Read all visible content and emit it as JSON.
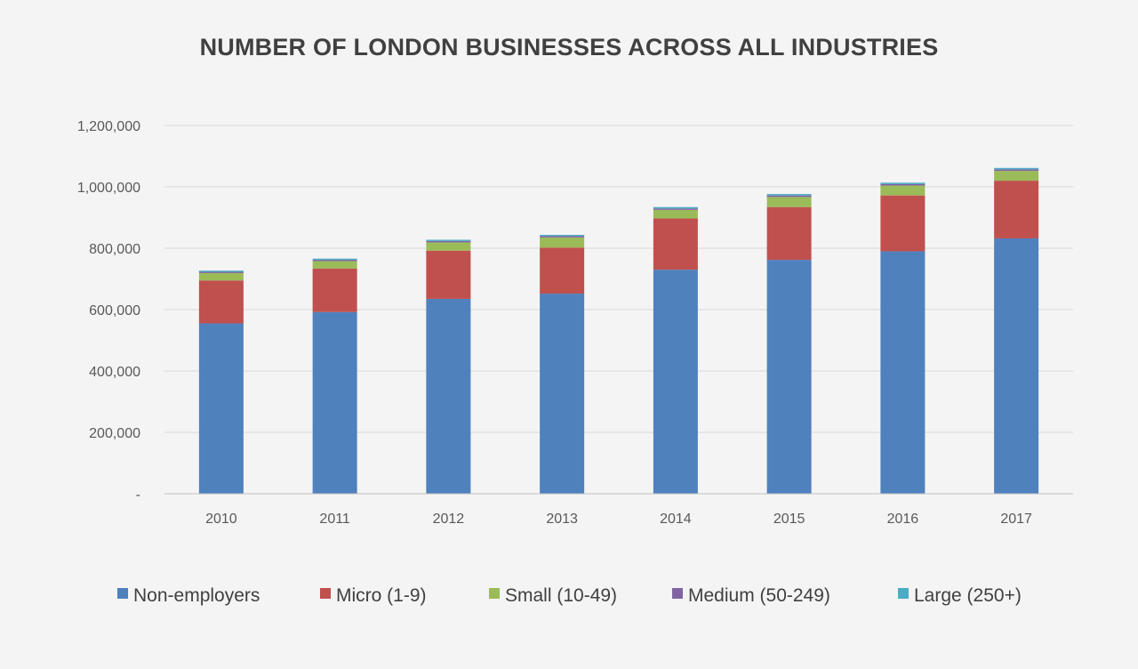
{
  "chart_data": {
    "type": "bar",
    "stacked": true,
    "title": "NUMBER OF LONDON BUSINESSES ACROSS ALL INDUSTRIES",
    "xlabel": "",
    "ylabel": "",
    "categories": [
      "2010",
      "2011",
      "2012",
      "2013",
      "2014",
      "2015",
      "2016",
      "2017"
    ],
    "ylim": [
      0,
      1200000
    ],
    "y_ticks": [
      0,
      200000,
      400000,
      600000,
      800000,
      1000000,
      1200000
    ],
    "y_tick_labels": [
      "-",
      "200,000",
      "400,000",
      "600,000",
      "800,000",
      "1,000,000",
      "1,200,000"
    ],
    "grid": true,
    "legend_position": "bottom",
    "series": [
      {
        "name": "Non-employers",
        "color": "#4f81bd",
        "values": [
          555000,
          592000,
          635000,
          652000,
          730000,
          762000,
          790000,
          832000
        ]
      },
      {
        "name": "Micro (1-9)",
        "color": "#c0504d",
        "values": [
          140000,
          142000,
          157000,
          150000,
          167000,
          172000,
          182000,
          188000
        ]
      },
      {
        "name": "Small (10-49)",
        "color": "#9bbb59",
        "values": [
          24000,
          24000,
          27000,
          33000,
          28000,
          33000,
          32000,
          32000
        ]
      },
      {
        "name": "Medium (50-249)",
        "color": "#8064a2",
        "values": [
          4000,
          4000,
          4500,
          4500,
          4500,
          5000,
          5000,
          5000
        ]
      },
      {
        "name": "Large (250+)",
        "color": "#4bacc6",
        "values": [
          4000,
          4000,
          4000,
          4000,
          4500,
          4500,
          4500,
          4500
        ]
      }
    ]
  }
}
